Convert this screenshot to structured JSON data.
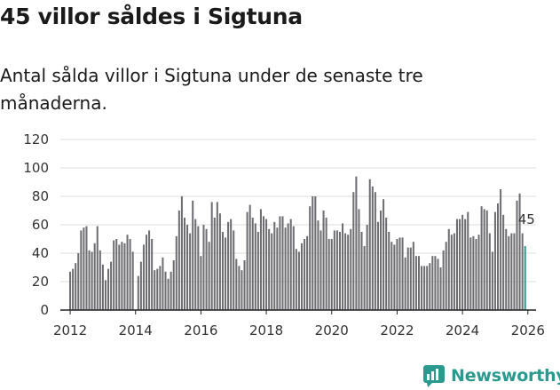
{
  "brand": {
    "name": "Newsworthy",
    "color": "#2a9a8e"
  },
  "chart_data": {
    "type": "bar",
    "title": "45 villor såldes i Sigtuna",
    "subtitle": "Antal sålda villor i Sigtuna under de senaste tre månaderna.",
    "xlabel": "",
    "ylabel": "",
    "ylim": [
      0,
      120
    ],
    "yticks": [
      0,
      20,
      40,
      60,
      80,
      100,
      120
    ],
    "xticks": [
      2012,
      2014,
      2016,
      2018,
      2020,
      2022,
      2024,
      2026
    ],
    "xlim": [
      2011.7,
      2026.25
    ],
    "start": 2012.0,
    "step_years": 0.0833333,
    "bar_color": "#6e6d72",
    "highlight_color": "#2a9a8e",
    "highlight_label": "45",
    "values": [
      27,
      29,
      33,
      40,
      56,
      58,
      59,
      42,
      41,
      47,
      59,
      42,
      32,
      21,
      29,
      34,
      49,
      50,
      46,
      48,
      47,
      53,
      50,
      41,
      0,
      24,
      34,
      46,
      53,
      56,
      50,
      28,
      29,
      31,
      37,
      27,
      22,
      27,
      35,
      52,
      70,
      80,
      65,
      60,
      54,
      77,
      64,
      59,
      38,
      60,
      57,
      48,
      76,
      65,
      76,
      68,
      55,
      51,
      62,
      64,
      56,
      36,
      31,
      28,
      35,
      69,
      74,
      65,
      61,
      55,
      71,
      66,
      64,
      57,
      54,
      62,
      58,
      66,
      66,
      58,
      61,
      64,
      59,
      43,
      41,
      47,
      50,
      52,
      73,
      80,
      80,
      63,
      56,
      70,
      65,
      50,
      50,
      56,
      56,
      55,
      61,
      54,
      53,
      57,
      83,
      94,
      71,
      55,
      45,
      60,
      92,
      87,
      83,
      62,
      70,
      78,
      65,
      55,
      48,
      46,
      50,
      51,
      51,
      37,
      44,
      44,
      48,
      38,
      38,
      31,
      31,
      31,
      33,
      38,
      38,
      36,
      30,
      42,
      48,
      57,
      53,
      54,
      64,
      64,
      67,
      64,
      69,
      51,
      52,
      50,
      53,
      73,
      71,
      70,
      54,
      41,
      69,
      75,
      85,
      67,
      57,
      52,
      54,
      54,
      77,
      82,
      54,
      45
    ]
  }
}
